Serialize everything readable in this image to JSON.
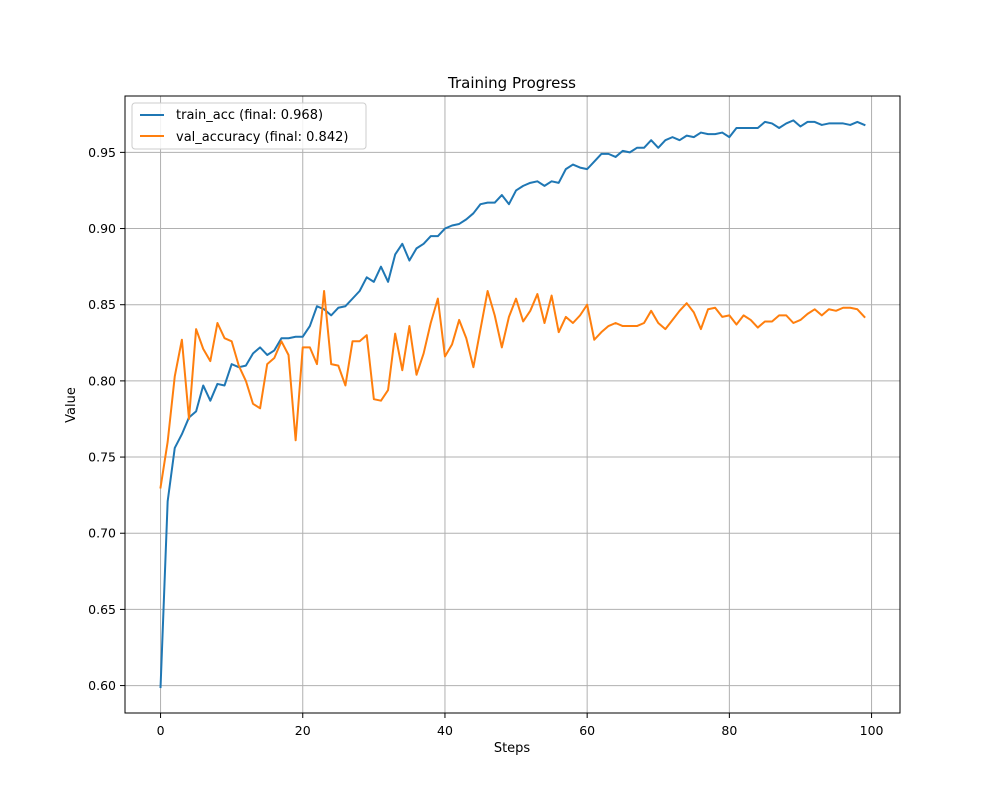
{
  "chart_data": {
    "type": "line",
    "title": "Training Progress",
    "xlabel": "Steps",
    "ylabel": "Value",
    "xlim": [
      -5,
      104
    ],
    "ylim": [
      0.582,
      0.987
    ],
    "grid": true,
    "legend_position": "top-left",
    "x_ticks": [
      0,
      20,
      40,
      60,
      80,
      100
    ],
    "y_ticks": [
      0.6,
      0.65,
      0.7,
      0.75,
      0.8,
      0.85,
      0.9,
      0.95
    ],
    "x_tick_labels": [
      "0",
      "20",
      "40",
      "60",
      "80",
      "100"
    ],
    "y_tick_labels": [
      "0.60",
      "0.65",
      "0.70",
      "0.75",
      "0.80",
      "0.85",
      "0.90",
      "0.95"
    ],
    "x": [
      0,
      1,
      2,
      3,
      4,
      5,
      6,
      7,
      8,
      9,
      10,
      11,
      12,
      13,
      14,
      15,
      16,
      17,
      18,
      19,
      20,
      21,
      22,
      23,
      24,
      25,
      26,
      27,
      28,
      29,
      30,
      31,
      32,
      33,
      34,
      35,
      36,
      37,
      38,
      39,
      40,
      41,
      42,
      43,
      44,
      45,
      46,
      47,
      48,
      49,
      50,
      51,
      52,
      53,
      54,
      55,
      56,
      57,
      58,
      59,
      60,
      61,
      62,
      63,
      64,
      65,
      66,
      67,
      68,
      69,
      70,
      71,
      72,
      73,
      74,
      75,
      76,
      77,
      78,
      79,
      80,
      81,
      82,
      83,
      84,
      85,
      86,
      87,
      88,
      89,
      90,
      91,
      92,
      93,
      94,
      95,
      96,
      97,
      98,
      99
    ],
    "series": [
      {
        "name": "train_acc (final: 0.968)",
        "color": "#1f77b4",
        "values": [
          0.599,
          0.721,
          0.756,
          0.765,
          0.776,
          0.78,
          0.797,
          0.787,
          0.798,
          0.797,
          0.811,
          0.809,
          0.81,
          0.818,
          0.822,
          0.817,
          0.82,
          0.828,
          0.828,
          0.829,
          0.829,
          0.836,
          0.849,
          0.847,
          0.843,
          0.848,
          0.849,
          0.854,
          0.859,
          0.868,
          0.865,
          0.875,
          0.865,
          0.883,
          0.89,
          0.879,
          0.887,
          0.89,
          0.895,
          0.895,
          0.9,
          0.902,
          0.903,
          0.906,
          0.91,
          0.916,
          0.917,
          0.917,
          0.922,
          0.916,
          0.925,
          0.928,
          0.93,
          0.931,
          0.928,
          0.931,
          0.93,
          0.939,
          0.942,
          0.94,
          0.939,
          0.944,
          0.949,
          0.949,
          0.947,
          0.951,
          0.95,
          0.953,
          0.953,
          0.958,
          0.953,
          0.958,
          0.96,
          0.958,
          0.961,
          0.96,
          0.963,
          0.962,
          0.962,
          0.963,
          0.96,
          0.966,
          0.966,
          0.966,
          0.966,
          0.97,
          0.969,
          0.966,
          0.969,
          0.971,
          0.967,
          0.97,
          0.97,
          0.968,
          0.969,
          0.969,
          0.969,
          0.968,
          0.97,
          0.968
        ]
      },
      {
        "name": "val_accuracy (final: 0.842)",
        "color": "#ff7f0e",
        "values": [
          0.73,
          0.76,
          0.803,
          0.827,
          0.775,
          0.834,
          0.821,
          0.813,
          0.838,
          0.828,
          0.826,
          0.81,
          0.8,
          0.785,
          0.782,
          0.811,
          0.815,
          0.826,
          0.817,
          0.761,
          0.822,
          0.822,
          0.811,
          0.859,
          0.811,
          0.81,
          0.797,
          0.826,
          0.826,
          0.83,
          0.788,
          0.787,
          0.794,
          0.831,
          0.807,
          0.836,
          0.804,
          0.818,
          0.838,
          0.854,
          0.816,
          0.824,
          0.84,
          0.828,
          0.809,
          0.834,
          0.859,
          0.843,
          0.822,
          0.842,
          0.854,
          0.839,
          0.846,
          0.857,
          0.838,
          0.856,
          0.832,
          0.842,
          0.838,
          0.843,
          0.85,
          0.827,
          0.832,
          0.836,
          0.838,
          0.836,
          0.836,
          0.836,
          0.838,
          0.846,
          0.838,
          0.834,
          0.84,
          0.846,
          0.851,
          0.845,
          0.834,
          0.847,
          0.848,
          0.842,
          0.843,
          0.837,
          0.843,
          0.84,
          0.835,
          0.839,
          0.839,
          0.843,
          0.843,
          0.838,
          0.84,
          0.844,
          0.847,
          0.843,
          0.847,
          0.846,
          0.848,
          0.848,
          0.847,
          0.842
        ]
      }
    ]
  }
}
